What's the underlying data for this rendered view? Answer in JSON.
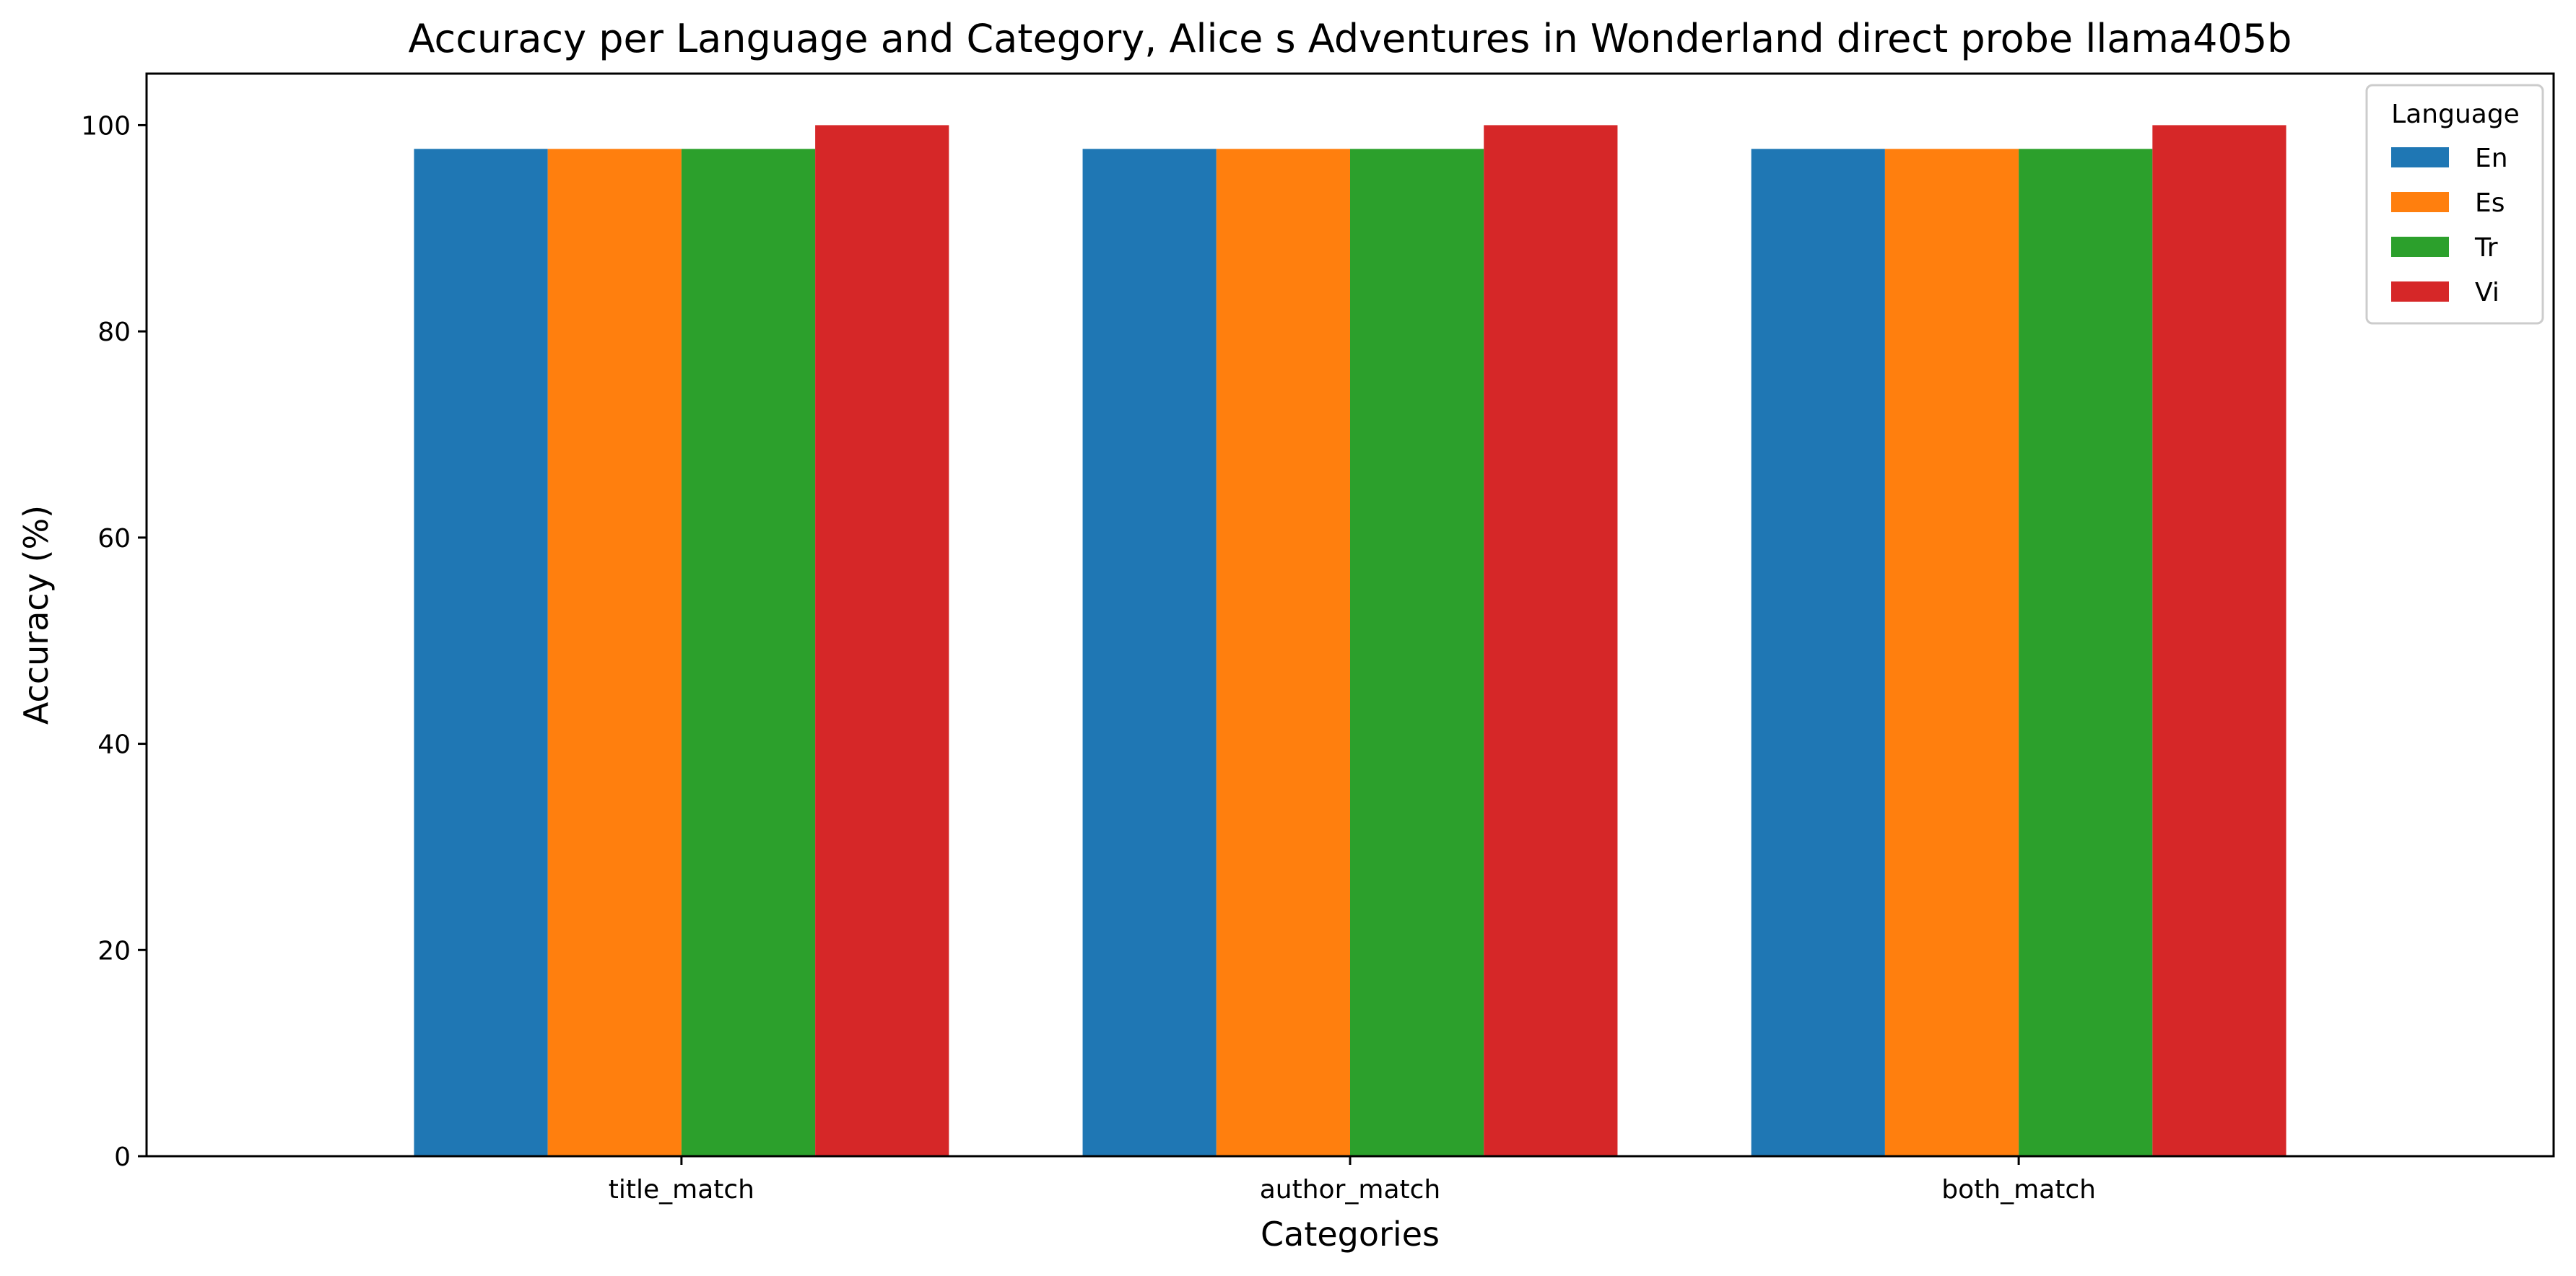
{
  "chart_data": {
    "type": "bar",
    "title": "Accuracy per Language and Category, Alice s Adventures in Wonderland direct probe llama405b",
    "xlabel": "Categories",
    "ylabel": "Accuracy (%)",
    "categories": [
      "title_match",
      "author_match",
      "both_match"
    ],
    "ylim": [
      0,
      105
    ],
    "yticks": [
      0,
      20,
      40,
      60,
      80,
      100
    ],
    "grid": false,
    "legend": {
      "title": "Language",
      "placement": "top-right"
    },
    "series": [
      {
        "name": "En",
        "color": "#1f77b4",
        "values": [
          97.7,
          97.7,
          97.7
        ]
      },
      {
        "name": "Es",
        "color": "#ff7f0e",
        "values": [
          97.7,
          97.7,
          97.7
        ]
      },
      {
        "name": "Tr",
        "color": "#2ca02c",
        "values": [
          97.7,
          97.7,
          97.7
        ]
      },
      {
        "name": "Vi",
        "color": "#d62728",
        "values": [
          100,
          100,
          100
        ]
      }
    ]
  }
}
